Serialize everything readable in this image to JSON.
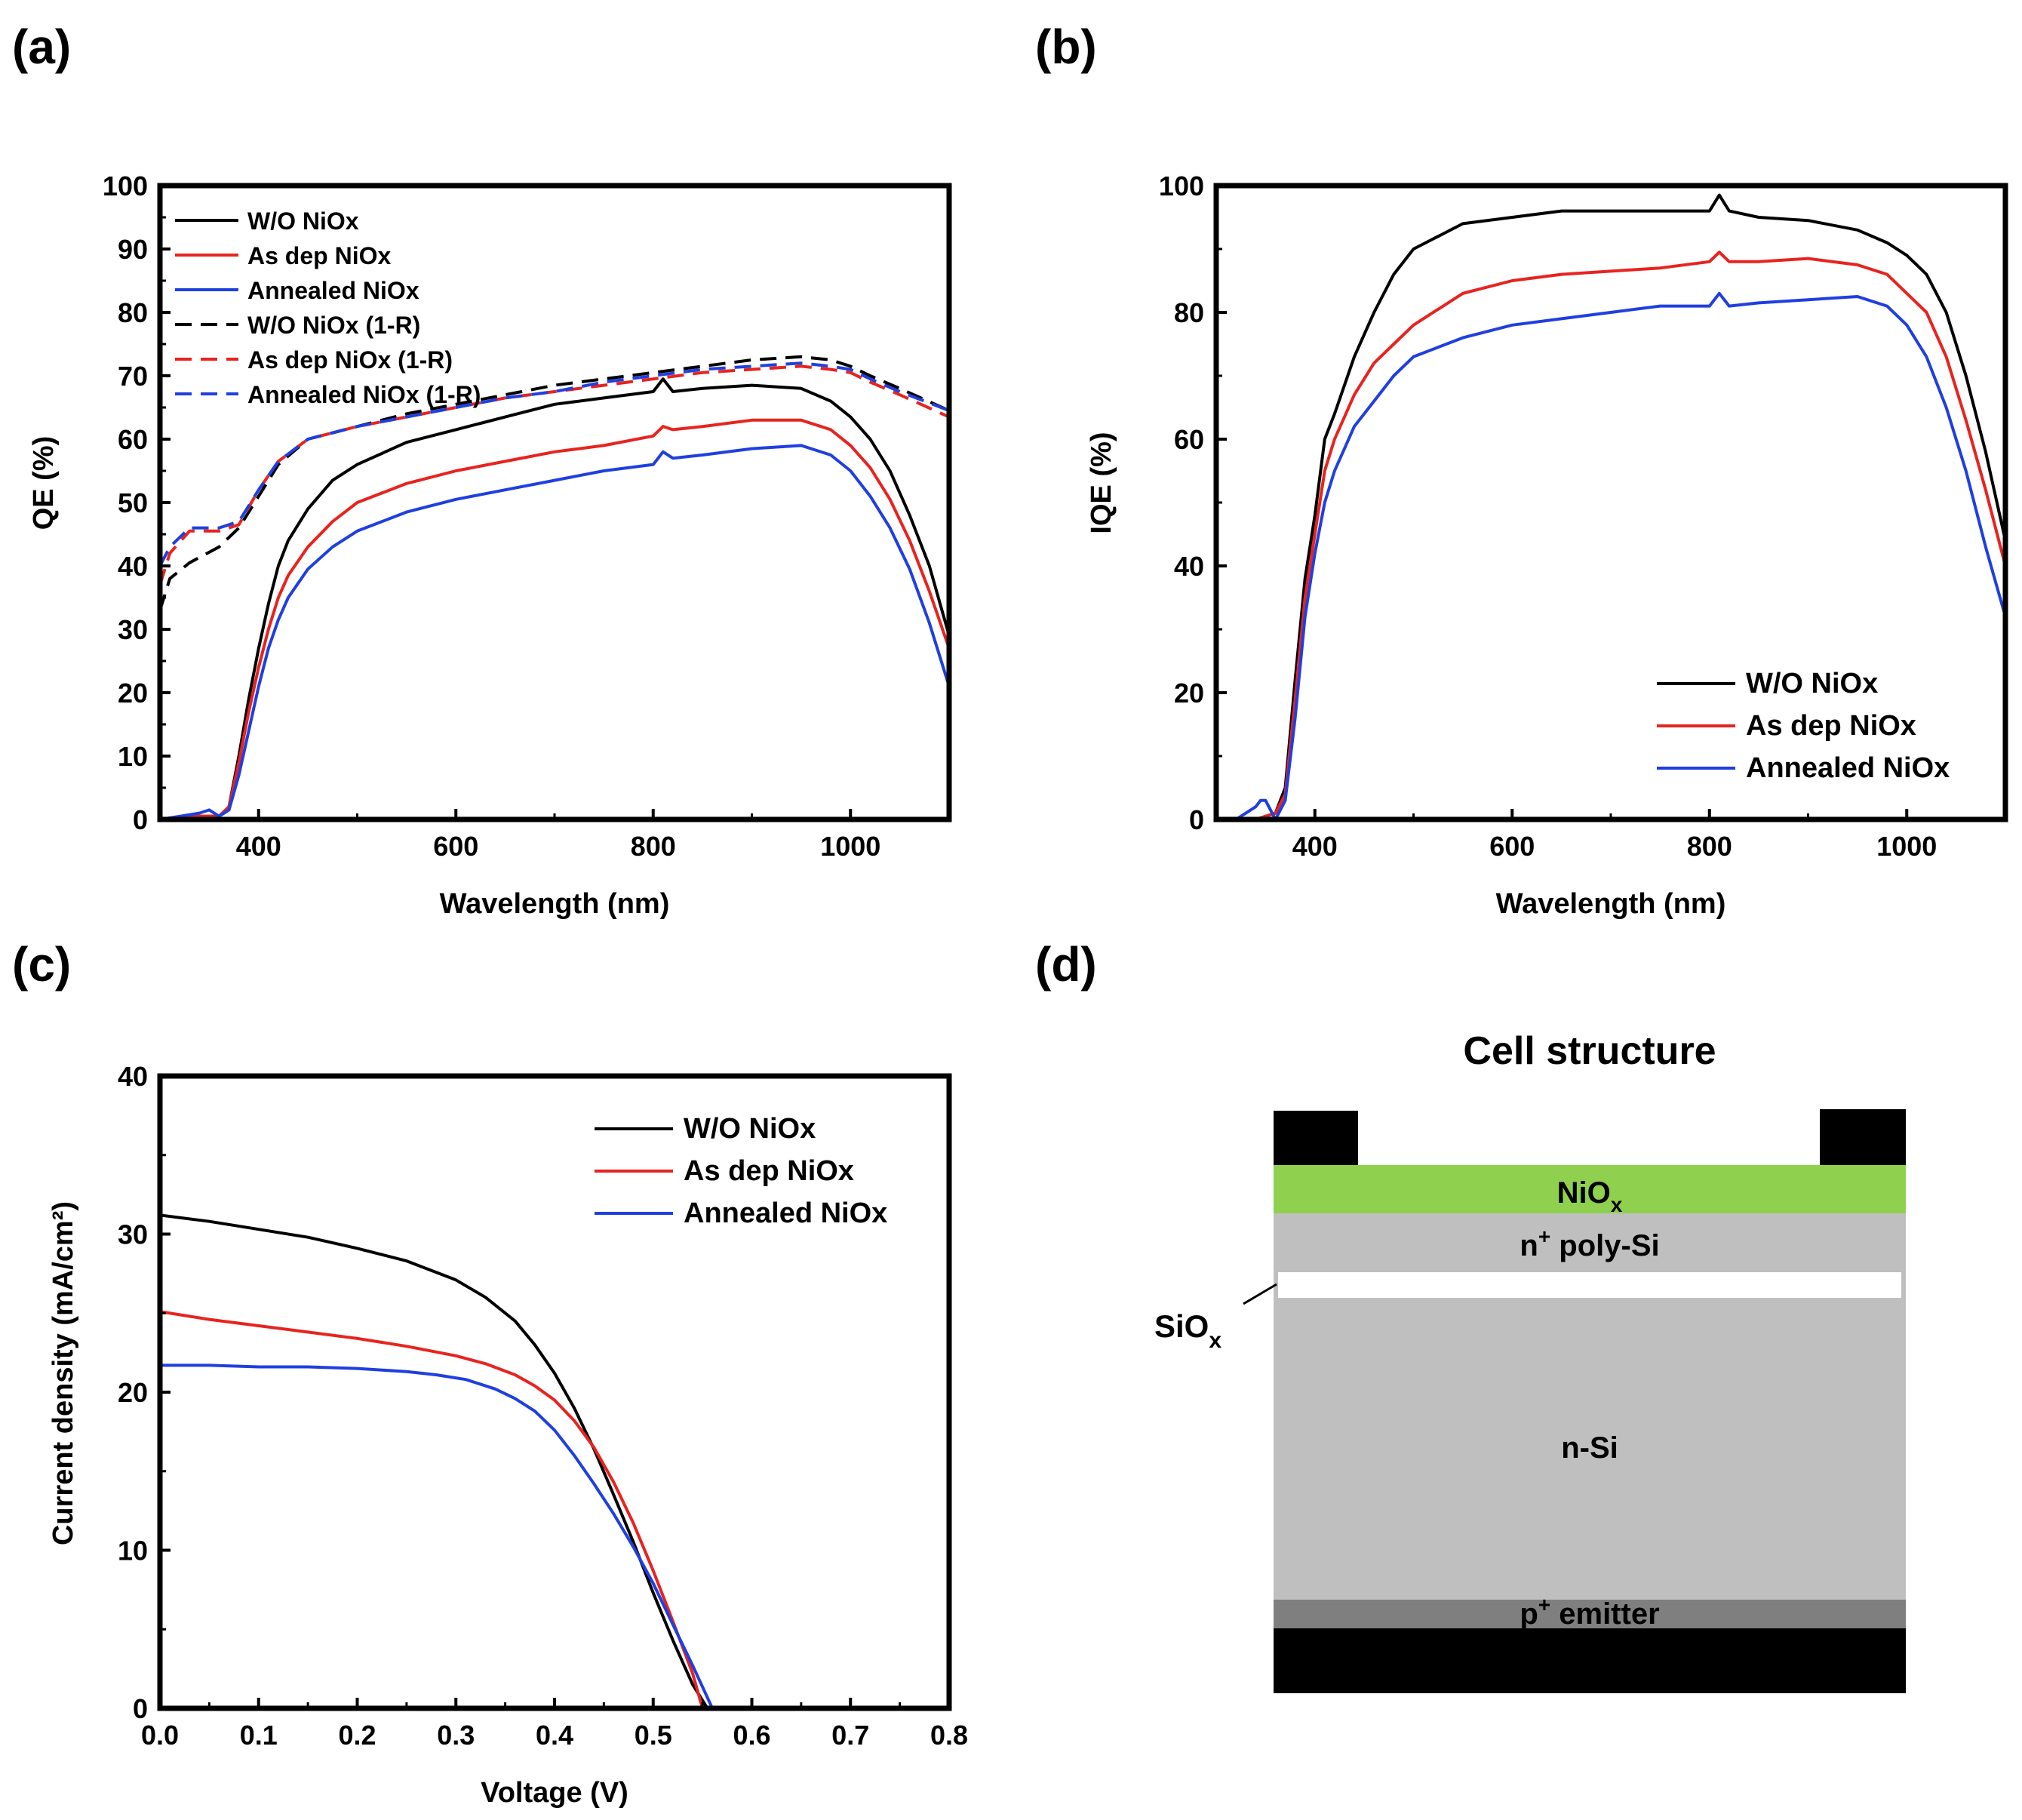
{
  "panel_labels": [
    "(a)",
    "(b)",
    "(c)",
    "(d)"
  ],
  "colors": {
    "wo": "#000000",
    "asdep": "#e8231f",
    "annealed": "#1f3fe0",
    "nio": "#8fd14f",
    "si": "#bfbfbf",
    "emitter": "#7f7f7f",
    "contact": "#000000"
  },
  "chart_data": [
    {
      "panel": "(a)",
      "type": "line",
      "xlabel": "Wavelength (nm)",
      "ylabel": "QE (%)",
      "xlim": [
        300,
        1100
      ],
      "ylim": [
        0,
        100
      ],
      "xticks": [
        400,
        600,
        800,
        1000
      ],
      "yticks": [
        0,
        10,
        20,
        30,
        40,
        50,
        60,
        70,
        80,
        90,
        100
      ],
      "legend_position": "top-left",
      "series": [
        {
          "name": "W/O NiOx",
          "color": "#000000",
          "dash": false,
          "x": [
            300,
            340,
            360,
            370,
            380,
            390,
            400,
            410,
            420,
            430,
            450,
            475,
            500,
            550,
            600,
            650,
            700,
            750,
            800,
            810,
            820,
            850,
            900,
            950,
            980,
            1000,
            1020,
            1040,
            1060,
            1080,
            1100
          ],
          "y": [
            0,
            0.5,
            0.5,
            2,
            10,
            19,
            27,
            34,
            40,
            44,
            49,
            53.5,
            56,
            59.5,
            61.5,
            63.5,
            65.5,
            66.5,
            67.5,
            69.5,
            67.5,
            68,
            68.5,
            68,
            66,
            63.5,
            60,
            55,
            48,
            40,
            29
          ]
        },
        {
          "name": "As dep NiOx",
          "color": "#e8231f",
          "dash": false,
          "x": [
            300,
            340,
            360,
            370,
            380,
            390,
            400,
            410,
            420,
            430,
            450,
            475,
            500,
            550,
            600,
            650,
            700,
            750,
            800,
            810,
            820,
            850,
            900,
            950,
            980,
            1000,
            1020,
            1040,
            1060,
            1080,
            1100
          ],
          "y": [
            0,
            0.5,
            0.5,
            2,
            9,
            17,
            24,
            30,
            35,
            38.5,
            43,
            47,
            50,
            53,
            55,
            56.5,
            58,
            59,
            60.5,
            62,
            61.5,
            62,
            63,
            63,
            61.5,
            59,
            55.5,
            50.5,
            44,
            36,
            27
          ]
        },
        {
          "name": "Annealed NiOx",
          "color": "#1f3fe0",
          "dash": false,
          "x": [
            300,
            340,
            350,
            360,
            370,
            380,
            390,
            400,
            410,
            420,
            430,
            450,
            475,
            500,
            550,
            600,
            650,
            700,
            750,
            800,
            810,
            820,
            850,
            900,
            950,
            980,
            1000,
            1020,
            1040,
            1060,
            1080,
            1100
          ],
          "y": [
            0,
            1,
            1.5,
            0.5,
            1.5,
            7,
            14,
            21,
            27,
            31.5,
            35,
            39.5,
            43,
            45.5,
            48.5,
            50.5,
            52,
            53.5,
            55,
            56,
            58,
            57,
            57.5,
            58.5,
            59,
            57.5,
            55,
            51,
            46,
            39.5,
            31,
            21
          ]
        },
        {
          "name": "W/O NiOx (1-R)",
          "color": "#000000",
          "dash": true,
          "x": [
            300,
            310,
            330,
            360,
            380,
            400,
            420,
            450,
            500,
            550,
            600,
            650,
            700,
            750,
            800,
            850,
            900,
            950,
            980,
            1000,
            1020,
            1050,
            1100
          ],
          "y": [
            33,
            38,
            40.5,
            43,
            46,
            51,
            56,
            60,
            62,
            64,
            65.5,
            67,
            68.5,
            69.5,
            70.5,
            71.5,
            72.5,
            73,
            72.5,
            71.5,
            70,
            68,
            64.5
          ]
        },
        {
          "name": "As dep NiOx (1-R)",
          "color": "#e8231f",
          "dash": true,
          "x": [
            300,
            310,
            330,
            360,
            380,
            400,
            420,
            450,
            500,
            550,
            600,
            650,
            700,
            750,
            800,
            850,
            900,
            950,
            980,
            1000,
            1020,
            1050,
            1100
          ],
          "y": [
            37,
            42,
            45.5,
            45.5,
            46.5,
            52,
            56.5,
            60,
            62,
            63.5,
            65,
            66.5,
            67.5,
            68.5,
            69.5,
            70.5,
            71,
            71.5,
            71,
            70.5,
            69,
            67,
            63.5
          ]
        },
        {
          "name": "Annealed NiOx (1-R)",
          "color": "#1f3fe0",
          "dash": true,
          "x": [
            300,
            310,
            330,
            360,
            380,
            400,
            420,
            450,
            500,
            550,
            600,
            650,
            700,
            750,
            800,
            850,
            900,
            950,
            980,
            1000,
            1020,
            1050,
            1100
          ],
          "y": [
            40,
            43,
            46,
            46,
            47,
            52,
            56.5,
            60,
            62,
            63.5,
            65,
            66.5,
            67.5,
            69,
            70,
            71,
            71.5,
            72,
            71.5,
            71,
            69.5,
            67.5,
            64.5
          ]
        }
      ]
    },
    {
      "panel": "(b)",
      "type": "line",
      "xlabel": "Wavelength (nm)",
      "ylabel": "IQE (%)",
      "xlim": [
        300,
        1100
      ],
      "ylim": [
        0,
        100
      ],
      "xticks": [
        400,
        600,
        800,
        1000
      ],
      "yticks": [
        0,
        20,
        40,
        60,
        80,
        100
      ],
      "legend_position": "bottom-right",
      "series": [
        {
          "name": "W/O NiOx",
          "color": "#000000",
          "x": [
            300,
            320,
            340,
            360,
            370,
            380,
            390,
            400,
            410,
            420,
            440,
            460,
            480,
            500,
            550,
            600,
            650,
            700,
            750,
            800,
            810,
            820,
            850,
            900,
            950,
            980,
            1000,
            1020,
            1040,
            1060,
            1080,
            1100
          ],
          "y": [
            0,
            0,
            0,
            1,
            5,
            22,
            38,
            48,
            60,
            64,
            73,
            80,
            86,
            90,
            94,
            95,
            96,
            96,
            96,
            96,
            98.5,
            96,
            95,
            94.5,
            93,
            91,
            89,
            86,
            80,
            70,
            58,
            44
          ]
        },
        {
          "name": "As dep NiOx",
          "color": "#e8231f",
          "x": [
            300,
            320,
            340,
            360,
            370,
            380,
            390,
            400,
            410,
            420,
            440,
            460,
            480,
            500,
            550,
            600,
            650,
            700,
            750,
            800,
            810,
            820,
            850,
            900,
            950,
            980,
            1000,
            1020,
            1040,
            1060,
            1080,
            1100
          ],
          "y": [
            0,
            0,
            0,
            1,
            4,
            19,
            35,
            45,
            55,
            60,
            67,
            72,
            75,
            78,
            83,
            85,
            86,
            86.5,
            87,
            88,
            89.5,
            88,
            88,
            88.5,
            87.5,
            86,
            83,
            80,
            73,
            63,
            52,
            40
          ]
        },
        {
          "name": "Annealed NiOx",
          "color": "#1f3fe0",
          "x": [
            300,
            320,
            340,
            345,
            350,
            360,
            370,
            380,
            390,
            400,
            410,
            420,
            440,
            460,
            480,
            500,
            550,
            600,
            650,
            700,
            750,
            800,
            810,
            820,
            850,
            900,
            950,
            980,
            1000,
            1020,
            1040,
            1060,
            1080,
            1100
          ],
          "y": [
            0,
            0,
            2,
            3,
            3,
            0,
            3,
            16,
            32,
            42,
            50,
            55,
            62,
            66,
            70,
            73,
            76,
            78,
            79,
            80,
            81,
            81,
            83,
            81,
            81.5,
            82,
            82.5,
            81,
            78,
            73,
            65,
            55,
            43,
            32
          ]
        }
      ]
    },
    {
      "panel": "(c)",
      "type": "line",
      "xlabel": "Voltage (V)",
      "ylabel": "Current density (mA/cm²)",
      "xlim": [
        0.0,
        0.8
      ],
      "ylim": [
        0,
        40
      ],
      "xticks": [
        "0.0",
        "0.1",
        "0.2",
        "0.3",
        "0.4",
        "0.5",
        "0.6",
        "0.7",
        "0.8"
      ],
      "yticks": [
        0,
        10,
        20,
        30,
        40
      ],
      "legend_position": "top-right",
      "series": [
        {
          "name": "W/O NiOx",
          "color": "#000000",
          "x": [
            0,
            0.05,
            0.1,
            0.15,
            0.2,
            0.25,
            0.3,
            0.33,
            0.36,
            0.38,
            0.4,
            0.42,
            0.44,
            0.46,
            0.48,
            0.5,
            0.52,
            0.54,
            0.555
          ],
          "y": [
            31.2,
            30.8,
            30.3,
            29.8,
            29.1,
            28.3,
            27.1,
            26,
            24.5,
            23,
            21.2,
            19,
            16.4,
            13.5,
            10.5,
            7.3,
            4.3,
            1.5,
            0
          ]
        },
        {
          "name": "As dep NiOx",
          "color": "#e8231f",
          "x": [
            0,
            0.05,
            0.1,
            0.15,
            0.2,
            0.25,
            0.3,
            0.33,
            0.36,
            0.38,
            0.4,
            0.42,
            0.44,
            0.46,
            0.48,
            0.5,
            0.52,
            0.54,
            0.55
          ],
          "y": [
            25.1,
            24.6,
            24.2,
            23.8,
            23.4,
            22.9,
            22.3,
            21.8,
            21.1,
            20.4,
            19.5,
            18.2,
            16.5,
            14.3,
            11.7,
            8.7,
            5.5,
            2.2,
            0
          ]
        },
        {
          "name": "Annealed NiOx",
          "color": "#1f3fe0",
          "x": [
            0,
            0.05,
            0.1,
            0.15,
            0.2,
            0.25,
            0.28,
            0.31,
            0.34,
            0.36,
            0.38,
            0.4,
            0.42,
            0.44,
            0.46,
            0.48,
            0.5,
            0.52,
            0.54,
            0.56
          ],
          "y": [
            21.7,
            21.7,
            21.6,
            21.6,
            21.5,
            21.3,
            21.1,
            20.8,
            20.2,
            19.6,
            18.8,
            17.6,
            16,
            14.2,
            12.3,
            10.2,
            7.9,
            5.3,
            2.7,
            0
          ]
        }
      ]
    }
  ],
  "diagram": {
    "title": "Cell structure",
    "layers": {
      "nio": "NiO",
      "nio_sub": "x",
      "poly_sup": "+",
      "poly": " poly-Si",
      "poly_prefix": "n",
      "nsi": "n-Si",
      "emitter_prefix": "p",
      "emitter_sup": "+",
      "emitter": " emitter"
    },
    "siox": "SiO",
    "siox_sub": "x"
  }
}
